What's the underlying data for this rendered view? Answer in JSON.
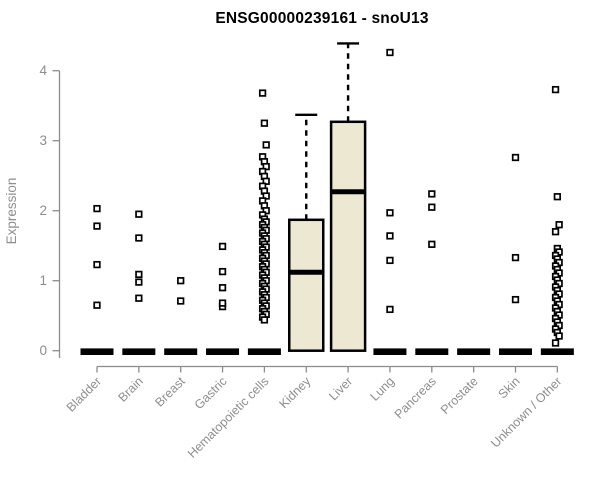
{
  "colors": {
    "background": "#ffffff",
    "box_fill": "#ede8d1",
    "box_stroke": "#000000",
    "median": "#000000",
    "outlier_fill": "#ffffff",
    "outlier_stroke": "#000000",
    "axis": "#8c8c8c",
    "tick_label": "#8e8e8e",
    "title": "#000000"
  },
  "chart_data": {
    "type": "boxplot",
    "title": "ENSG00000239161 - snoU13",
    "xlabel": "",
    "ylabel": "Expression",
    "ylim": [
      0,
      4.4
    ],
    "yticks": [
      0,
      1,
      2,
      3,
      4
    ],
    "grid": false,
    "legend": null,
    "categories": [
      "Bladder",
      "Brain",
      "Breast",
      "Gastric",
      "Hematopoietic cells",
      "Kidney",
      "Liver",
      "Lung",
      "Pancreas",
      "Prostate",
      "Skin",
      "Unknown / Other"
    ],
    "boxes": [
      {
        "category": "Bladder",
        "min": 0,
        "q1": 0,
        "median": 0,
        "q3": 0,
        "max": 0,
        "outliers": [
          0.65,
          1.23,
          1.78,
          2.03
        ]
      },
      {
        "category": "Brain",
        "min": 0,
        "q1": 0,
        "median": 0,
        "q3": 0,
        "max": 0,
        "outliers": [
          0.75,
          0.98,
          1.09,
          1.61,
          1.95
        ]
      },
      {
        "category": "Breast",
        "min": 0,
        "q1": 0,
        "median": 0,
        "q3": 0,
        "max": 0,
        "outliers": [
          0.71,
          1.0
        ]
      },
      {
        "category": "Gastric",
        "min": 0,
        "q1": 0,
        "median": 0,
        "q3": 0,
        "max": 0,
        "outliers": [
          0.63,
          0.68,
          0.9,
          1.13,
          1.49
        ]
      },
      {
        "category": "Hematopoietic cells",
        "min": 0,
        "q1": 0,
        "median": 0,
        "q3": 0,
        "max": 0,
        "outliers": [
          3.68,
          3.25,
          2.94,
          2.77,
          2.7,
          2.63,
          2.56,
          2.49,
          2.42,
          2.35,
          2.28,
          2.21,
          2.14,
          2.07,
          2.0,
          1.94,
          1.88,
          1.84,
          1.8,
          1.76,
          1.72,
          1.68,
          1.64,
          1.6,
          1.56,
          1.52,
          1.48,
          1.44,
          1.4,
          1.36,
          1.32,
          1.28,
          1.24,
          1.2,
          1.16,
          1.12,
          1.08,
          1.04,
          1.0,
          0.96,
          0.92,
          0.88,
          0.84,
          0.8,
          0.76,
          0.72,
          0.68,
          0.64,
          0.6,
          0.56,
          0.52,
          0.48,
          0.44
        ]
      },
      {
        "category": "Kidney",
        "min": 0,
        "q1": 0,
        "median": 1.12,
        "q3": 1.87,
        "max": 3.37,
        "outliers": []
      },
      {
        "category": "Liver",
        "min": 0,
        "q1": 0,
        "median": 2.27,
        "q3": 3.27,
        "max": 4.39,
        "outliers": []
      },
      {
        "category": "Lung",
        "min": 0,
        "q1": 0,
        "median": 0,
        "q3": 0,
        "max": 0,
        "outliers": [
          0.59,
          1.29,
          1.64,
          1.97,
          4.26
        ]
      },
      {
        "category": "Pancreas",
        "min": 0,
        "q1": 0,
        "median": 0,
        "q3": 0,
        "max": 0,
        "outliers": [
          1.52,
          2.05,
          2.24
        ]
      },
      {
        "category": "Prostate",
        "min": 0,
        "q1": 0,
        "median": 0,
        "q3": 0,
        "max": 0,
        "outliers": []
      },
      {
        "category": "Skin",
        "min": 0,
        "q1": 0,
        "median": 0,
        "q3": 0,
        "max": 0,
        "outliers": [
          0.73,
          1.33,
          2.76
        ]
      },
      {
        "category": "Unknown / Other",
        "min": 0,
        "q1": 0,
        "median": 0,
        "q3": 0,
        "max": 0,
        "outliers": [
          3.73,
          2.2,
          1.8,
          1.7,
          1.46,
          1.41,
          1.36,
          1.31,
          1.26,
          1.21,
          1.16,
          1.11,
          1.06,
          1.01,
          0.96,
          0.91,
          0.86,
          0.81,
          0.76,
          0.71,
          0.66,
          0.61,
          0.56,
          0.51,
          0.46,
          0.41,
          0.36,
          0.31,
          0.26,
          0.21,
          0.11
        ]
      }
    ]
  }
}
